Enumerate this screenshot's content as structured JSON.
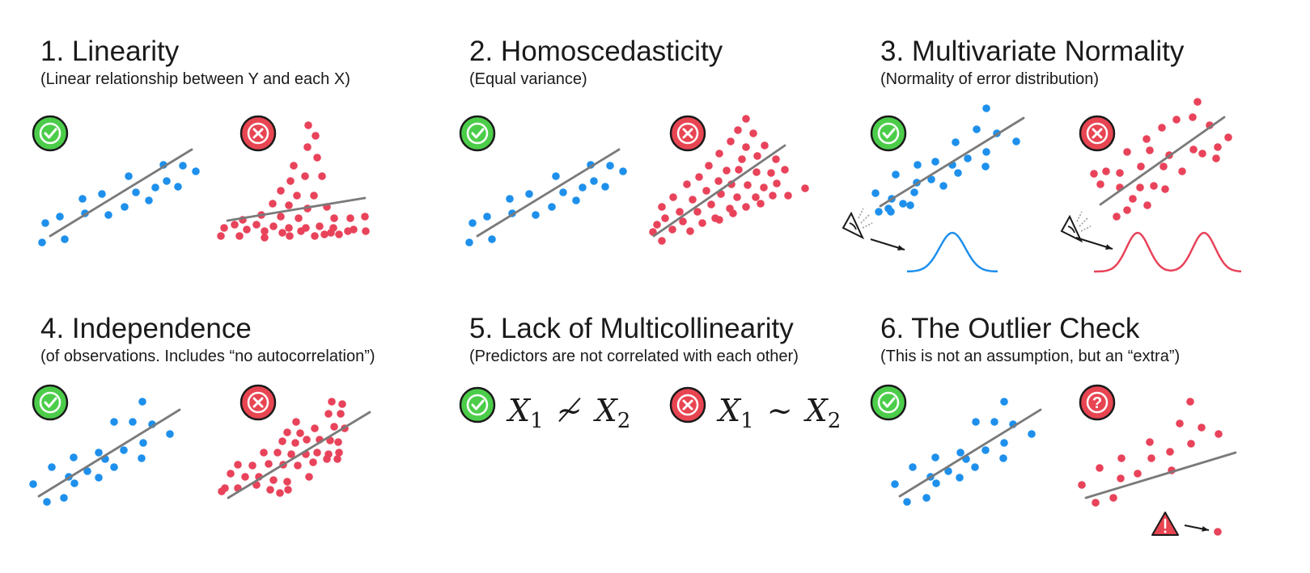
{
  "colors": {
    "good_points": "#1e90ec",
    "bad_points": "#e8435a",
    "line": "#7a7a7a",
    "check_bg": "#4ccd4a",
    "cross_bg": "#e84552",
    "outline": "#1a1a1a"
  },
  "panels": [
    {
      "title": "1. Linearity",
      "subtitle": "(Linear relationship between Y and each X)",
      "good": {
        "badge": "check-icon"
      },
      "bad": {
        "badge": "cross-icon"
      }
    },
    {
      "title": "2. Homoscedasticity",
      "subtitle": "(Equal variance)",
      "good": {
        "badge": "check-icon"
      },
      "bad": {
        "badge": "cross-icon"
      }
    },
    {
      "title": "3. Multivariate Normality",
      "subtitle": "(Normality of error distribution)",
      "good": {
        "badge": "check-icon",
        "distribution": "unimodal"
      },
      "bad": {
        "badge": "cross-icon",
        "distribution": "bimodal"
      }
    },
    {
      "title": "4. Independence",
      "subtitle": "(of observations. Includes “no autocorrelation”)",
      "good": {
        "badge": "check-icon"
      },
      "bad": {
        "badge": "cross-icon"
      }
    },
    {
      "title": "5. Lack of Multicollinearity",
      "subtitle": "(Predictors are not correlated with each other)",
      "good": {
        "badge": "check-icon",
        "x": "X",
        "s1": "1",
        "rel": "≁",
        "y": "X",
        "s2": "2"
      },
      "bad": {
        "badge": "cross-icon",
        "x": "X",
        "s1": "1",
        "rel": "~",
        "y": "X",
        "s2": "2"
      }
    },
    {
      "title": "6. The Outlier Check",
      "subtitle": "(This is not an assumption, but an “extra”)",
      "good": {
        "badge": "check-icon"
      },
      "bad": {
        "badge": "question-icon",
        "warning": "warning-icon"
      }
    }
  ]
}
